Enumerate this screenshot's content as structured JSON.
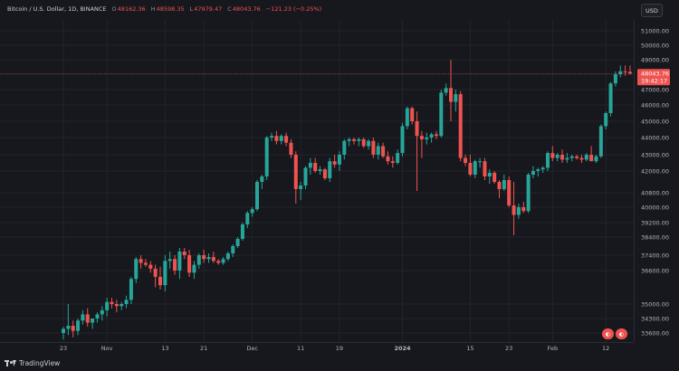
{
  "header": {
    "symbol": "Bitcoin / U.S. Dollar, 1D, BINANCE",
    "ohlc": [
      {
        "label": "O",
        "value": "48162.36"
      },
      {
        "label": "H",
        "value": "48598.35"
      },
      {
        "label": "L",
        "value": "47979.47"
      },
      {
        "label": "C",
        "value": "48043.76"
      }
    ],
    "change": "−121.23 (−0.25%)",
    "currency_button": "USD"
  },
  "price_label": {
    "price": "48043.76",
    "countdown": "19:42:17"
  },
  "footer": {
    "brand": "TradingView"
  },
  "colors": {
    "up": "#26a69a",
    "down": "#ef5350",
    "background": "#17181d",
    "price_line": "#ef5350"
  },
  "chart_data": {
    "type": "candlestick",
    "symbol": "Bitcoin / U.S. Dollar",
    "interval": "1D",
    "exchange": "BINANCE",
    "x_tick_labels": [
      {
        "label": "23",
        "index": 0
      },
      {
        "label": "Nov",
        "index": 9
      },
      {
        "label": "13",
        "index": 21
      },
      {
        "label": "21",
        "index": 29
      },
      {
        "label": "Dec",
        "index": 39
      },
      {
        "label": "11",
        "index": 49
      },
      {
        "label": "19",
        "index": 57
      },
      {
        "label": "2024",
        "index": 70
      },
      {
        "label": "15",
        "index": 84
      },
      {
        "label": "23",
        "index": 92
      },
      {
        "label": "Feb",
        "index": 101
      },
      {
        "label": "12",
        "index": 112
      }
    ],
    "y_tick_labels": [
      "51000.00",
      "50000.00",
      "49000.00",
      "48000.00",
      "47000.00",
      "46000.00",
      "45000.00",
      "44000.00",
      "43000.00",
      "42000.00",
      "40800.00",
      "40000.00",
      "39200.00",
      "38400.00",
      "37400.00",
      "36600.00",
      "35000.00",
      "34300.00",
      "33600.00"
    ],
    "last_price": 48043.76,
    "candles": [
      [
        33600,
        33900,
        33300,
        33800
      ],
      [
        33800,
        35000,
        33500,
        33950
      ],
      [
        33950,
        34200,
        33400,
        33700
      ],
      [
        33700,
        34300,
        33500,
        34200
      ],
      [
        34200,
        34700,
        34000,
        34500
      ],
      [
        34500,
        34800,
        33900,
        34100
      ],
      [
        34100,
        34300,
        33800,
        34300
      ],
      [
        34300,
        34600,
        34100,
        34500
      ],
      [
        34500,
        34900,
        34200,
        34700
      ],
      [
        34700,
        35300,
        34400,
        35100
      ],
      [
        35100,
        35300,
        34800,
        35000
      ],
      [
        35000,
        35200,
        34600,
        34900
      ],
      [
        34900,
        35100,
        34700,
        35000
      ],
      [
        35000,
        35400,
        34800,
        35200
      ],
      [
        35200,
        36300,
        35000,
        36200
      ],
      [
        36200,
        37300,
        36000,
        37200
      ],
      [
        37200,
        37400,
        36700,
        37000
      ],
      [
        37000,
        37200,
        36800,
        36900
      ],
      [
        36900,
        37100,
        36500,
        36700
      ],
      [
        36700,
        36900,
        35800,
        36300
      ],
      [
        36300,
        36800,
        35700,
        35900
      ],
      [
        35900,
        37400,
        35600,
        37100
      ],
      [
        37100,
        37600,
        36700,
        37200
      ],
      [
        37200,
        37400,
        36400,
        36600
      ],
      [
        36600,
        37800,
        36200,
        37600
      ],
      [
        37600,
        37800,
        37200,
        37400
      ],
      [
        37400,
        37700,
        36300,
        36500
      ],
      [
        36500,
        37100,
        36200,
        36900
      ],
      [
        36900,
        37500,
        36700,
        37400
      ],
      [
        37400,
        37700,
        37000,
        37200
      ],
      [
        37200,
        37500,
        37000,
        37300
      ],
      [
        37300,
        37600,
        37000,
        37100
      ],
      [
        37100,
        37200,
        36900,
        37000
      ],
      [
        37000,
        37300,
        36900,
        37200
      ],
      [
        37200,
        37600,
        37100,
        37500
      ],
      [
        37500,
        38000,
        37300,
        37900
      ],
      [
        37900,
        38400,
        37800,
        38300
      ],
      [
        38300,
        39200,
        38200,
        39100
      ],
      [
        39100,
        39800,
        38900,
        39700
      ],
      [
        39700,
        40000,
        39500,
        39900
      ],
      [
        39900,
        41500,
        39800,
        41400
      ],
      [
        41400,
        41800,
        41000,
        41700
      ],
      [
        41700,
        44100,
        41500,
        44000
      ],
      [
        44000,
        44300,
        43800,
        44100
      ],
      [
        44100,
        44400,
        43600,
        43800
      ],
      [
        43800,
        44200,
        43600,
        44100
      ],
      [
        44100,
        44300,
        43500,
        43700
      ],
      [
        43700,
        43900,
        42800,
        43000
      ],
      [
        43000,
        43200,
        40200,
        41000
      ],
      [
        41000,
        41400,
        40400,
        41200
      ],
      [
        41200,
        42300,
        41000,
        42200
      ],
      [
        42200,
        42800,
        41800,
        42500
      ],
      [
        42500,
        42800,
        41900,
        42000
      ],
      [
        42000,
        42300,
        41800,
        42100
      ],
      [
        42100,
        42200,
        41500,
        41600
      ],
      [
        41600,
        42800,
        41400,
        42600
      ],
      [
        42600,
        43000,
        42200,
        42400
      ],
      [
        42400,
        43200,
        42000,
        43000
      ],
      [
        43000,
        43900,
        42700,
        43800
      ],
      [
        43800,
        44000,
        43500,
        43900
      ],
      [
        43900,
        44000,
        43600,
        43800
      ],
      [
        43800,
        44000,
        43500,
        43900
      ],
      [
        43900,
        44000,
        43400,
        43500
      ],
      [
        43500,
        43900,
        43300,
        43800
      ],
      [
        43800,
        44000,
        42800,
        43000
      ],
      [
        43000,
        43700,
        42700,
        43500
      ],
      [
        43500,
        43700,
        42800,
        42900
      ],
      [
        42900,
        43200,
        42400,
        42600
      ],
      [
        42600,
        42900,
        42200,
        42500
      ],
      [
        42500,
        43300,
        42400,
        43100
      ],
      [
        43100,
        44900,
        42900,
        44700
      ],
      [
        44700,
        45900,
        44500,
        45800
      ],
      [
        45800,
        45900,
        44800,
        45000
      ],
      [
        45000,
        45600,
        40900,
        44100
      ],
      [
        44100,
        44400,
        42800,
        43900
      ],
      [
        43900,
        44300,
        43600,
        44000
      ],
      [
        44000,
        44300,
        43700,
        44200
      ],
      [
        44200,
        44400,
        43900,
        44100
      ],
      [
        44100,
        47000,
        44000,
        46800
      ],
      [
        46800,
        47400,
        46600,
        47100
      ],
      [
        47100,
        49000,
        45000,
        46200
      ],
      [
        46200,
        47000,
        45600,
        46700
      ],
      [
        46700,
        46900,
        42600,
        42800
      ],
      [
        42800,
        43000,
        42300,
        42500
      ],
      [
        42500,
        43000,
        41700,
        41800
      ],
      [
        41800,
        42700,
        41600,
        42600
      ],
      [
        42600,
        42800,
        42200,
        42600
      ],
      [
        42600,
        42800,
        41500,
        41700
      ],
      [
        41700,
        42100,
        41300,
        41900
      ],
      [
        41900,
        42000,
        41300,
        41400
      ],
      [
        41400,
        41500,
        40500,
        41000
      ],
      [
        41000,
        41800,
        40900,
        41500
      ],
      [
        41500,
        41700,
        40000,
        40100
      ],
      [
        40100,
        41400,
        38500,
        39600
      ],
      [
        39600,
        40200,
        39400,
        40000
      ],
      [
        40000,
        40300,
        39700,
        39800
      ],
      [
        39800,
        41900,
        39700,
        41800
      ],
      [
        41800,
        42300,
        41600,
        42000
      ],
      [
        42000,
        42200,
        41700,
        42100
      ],
      [
        42100,
        42300,
        41900,
        42200
      ],
      [
        42200,
        43200,
        42000,
        43100
      ],
      [
        43100,
        43500,
        42600,
        42800
      ],
      [
        42800,
        43100,
        42600,
        43000
      ],
      [
        43000,
        43300,
        42500,
        42700
      ],
      [
        42700,
        43100,
        42500,
        42800
      ],
      [
        42800,
        43000,
        42600,
        42900
      ],
      [
        42900,
        43000,
        42700,
        42800
      ],
      [
        42800,
        43000,
        42500,
        42700
      ],
      [
        42700,
        43100,
        42600,
        43000
      ],
      [
        43000,
        43500,
        42700,
        42600
      ],
      [
        42600,
        43000,
        42500,
        42900
      ],
      [
        42900,
        44800,
        42800,
        44700
      ],
      [
        44700,
        45600,
        44500,
        45500
      ],
      [
        45500,
        47500,
        45300,
        47400
      ],
      [
        47400,
        48200,
        47200,
        48000
      ],
      [
        48000,
        48600,
        47800,
        48200
      ],
      [
        48200,
        48600,
        47900,
        48150
      ],
      [
        48162.36,
        48598.35,
        47979.47,
        48043.76
      ]
    ]
  }
}
